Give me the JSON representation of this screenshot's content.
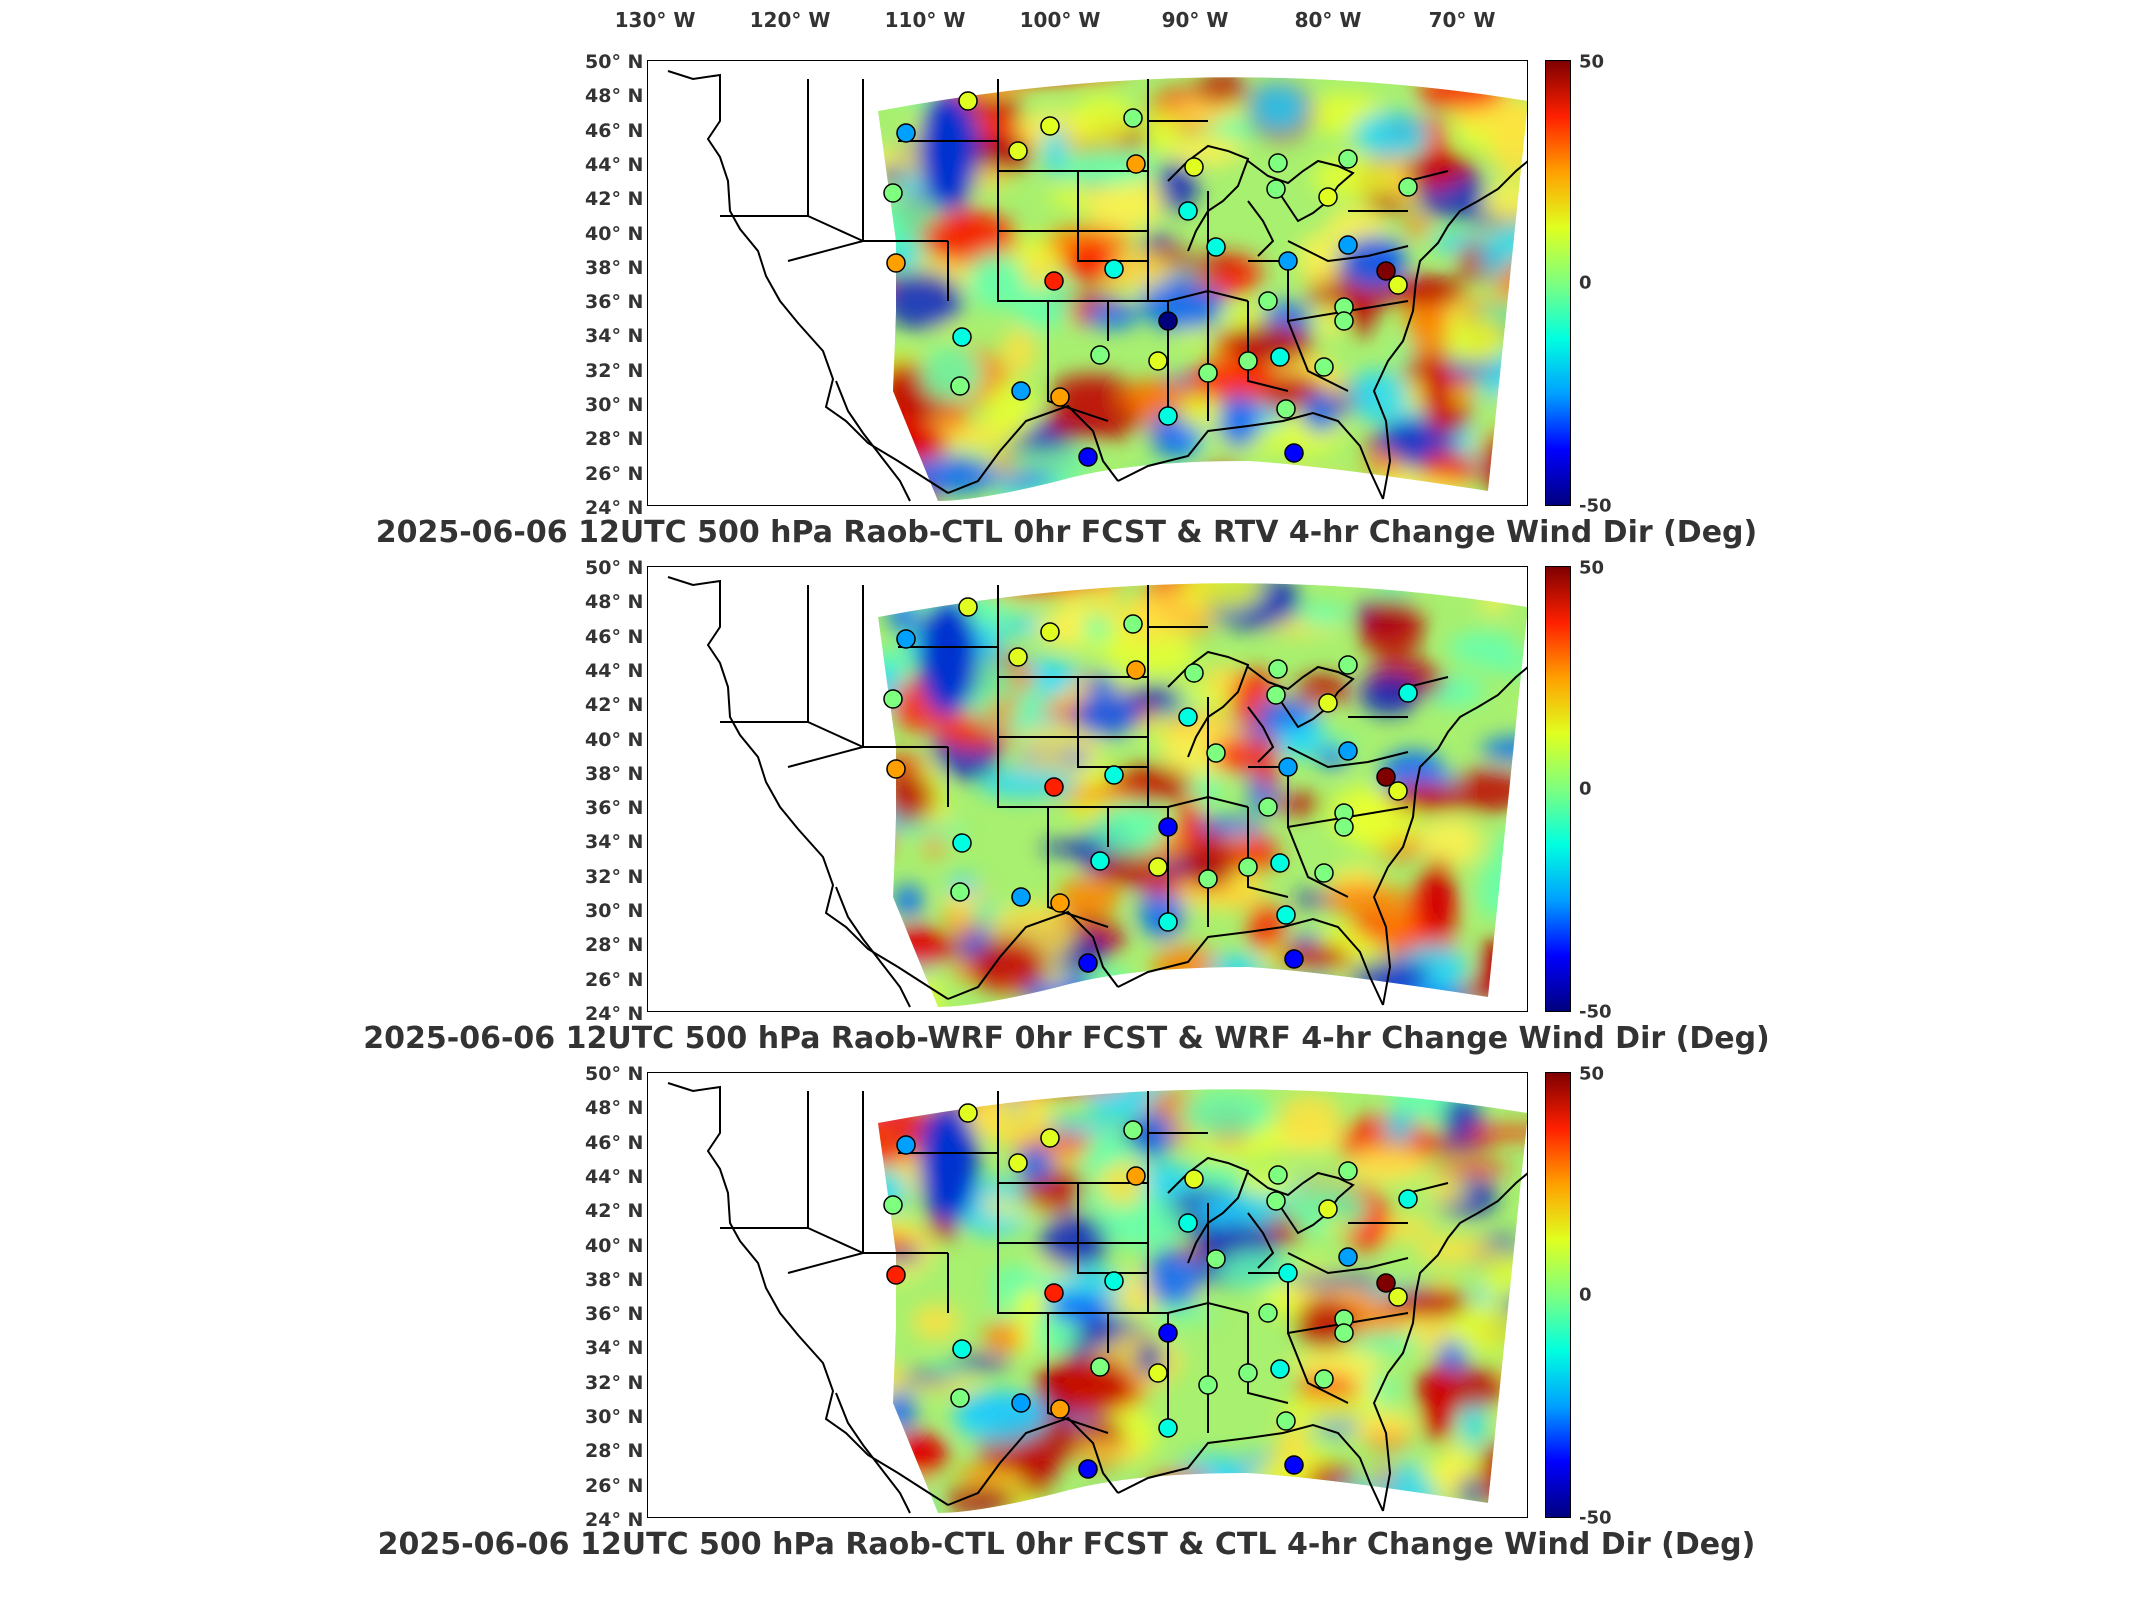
{
  "top_axis": {
    "lon_labels": [
      "130° W",
      "120° W",
      "110° W",
      "100° W",
      "90° W",
      "80° W",
      "70° W"
    ]
  },
  "lat_labels": [
    "50° N",
    "48° N",
    "46° N",
    "44° N",
    "42° N",
    "40° N",
    "38° N",
    "36° N",
    "34° N",
    "32° N",
    "30° N",
    "28° N",
    "26° N",
    "24° N"
  ],
  "colorbar": {
    "max_label": "50",
    "mid_label": "0",
    "min_label": "-50",
    "min": -50,
    "max": 50,
    "colors": [
      "#00007f",
      "#0000ff",
      "#00a0ff",
      "#00ffe0",
      "#7fff7f",
      "#e0ff20",
      "#ffa000",
      "#ff2000",
      "#7f0000"
    ]
  },
  "panels": [
    {
      "title": "2025-06-06 12UTC 500 hPa Raob-CTL 0hr FCST & RTV 4-hr Change Wind Dir (Deg)"
    },
    {
      "title": "2025-06-06 12UTC 500 hPa Raob-WRF 0hr FCST & WRF 4-hr Change Wind Dir (Deg)"
    },
    {
      "title": "2025-06-06 12UTC 500 hPa Raob-CTL 0hr FCST & CTL 4-hr Change Wind Dir (Deg)"
    }
  ]
}
